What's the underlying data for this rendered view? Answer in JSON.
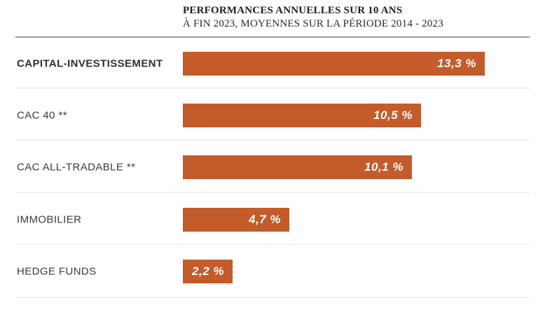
{
  "header": {
    "title": "PERFORMANCES ANNUELLES SUR 10 ANS",
    "subtitle": "À FIN 2023, MOYENNES SUR LA PÉRIODE 2014 - 2023"
  },
  "colors": {
    "bar": "#c35b2b",
    "value_text": "#ffffff",
    "label_text": "#3c3c3c",
    "title_text": "#1f1f1f",
    "header_divider": "#9c9c9c",
    "row_separator": "#f1f1f1",
    "background": "#ffffff"
  },
  "chart_data": {
    "type": "bar",
    "orientation": "horizontal",
    "title": "PERFORMANCES ANNUELLES SUR 10 ANS",
    "subtitle": "À FIN 2023, MOYENNES SUR LA PÉRIODE 2014 - 2023",
    "categories": [
      "CAPITAL-INVESTISSEMENT",
      "CAC 40 **",
      "CAC ALL-TRADABLE **",
      "IMMOBILIER",
      "HEDGE FUNDS"
    ],
    "values": [
      13.3,
      10.5,
      10.1,
      4.7,
      2.2
    ],
    "value_labels": [
      "13,3 %",
      "10,5 %",
      "10,1 %",
      "4,7 %",
      "2,2 %"
    ],
    "unit": "%",
    "xlim": [
      0,
      13.3
    ],
    "grid": false,
    "legend": false,
    "bar_color": "#c35b2b",
    "value_label_position": "inside-right"
  },
  "rows": [
    {
      "label": "CAPITAL-INVESTISSEMENT",
      "value": 13.3,
      "value_label": "13,3 %"
    },
    {
      "label": "CAC 40 **",
      "value": 10.5,
      "value_label": "10,5 %"
    },
    {
      "label": "CAC ALL-TRADABLE **",
      "value": 10.1,
      "value_label": "10,1 %"
    },
    {
      "label": "IMMOBILIER",
      "value": 4.7,
      "value_label": "4,7 %"
    },
    {
      "label": "HEDGE FUNDS",
      "value": 2.2,
      "value_label": "2,2 %"
    }
  ]
}
